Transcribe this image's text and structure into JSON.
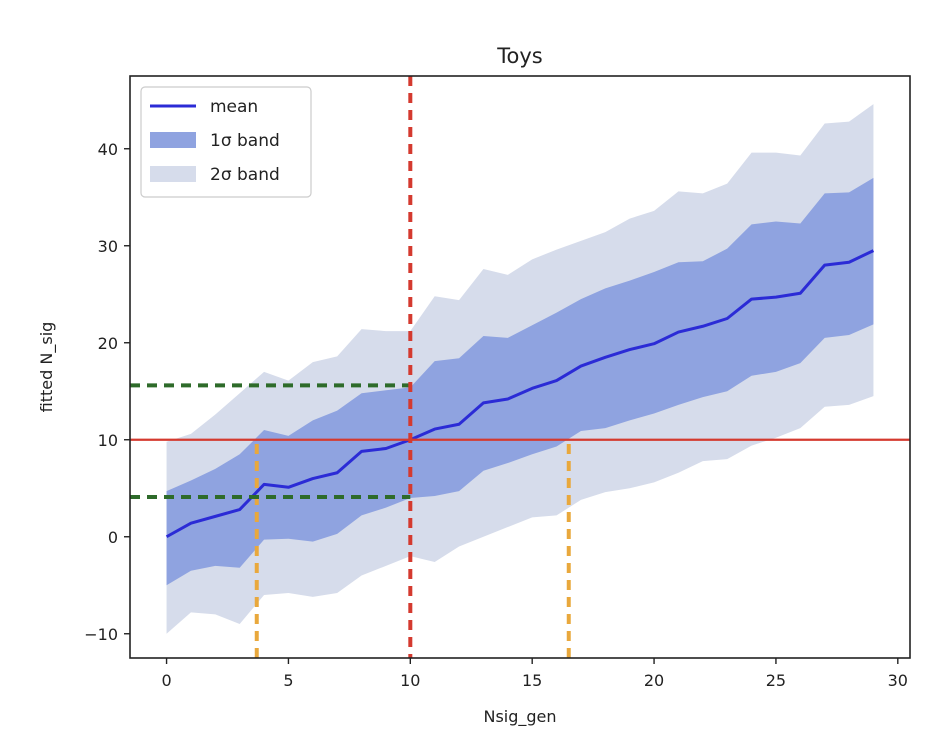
{
  "chart_data": {
    "type": "line",
    "title": "Toys",
    "xlabel": "Nsig_gen",
    "ylabel": "fitted N_sig",
    "xlim": [
      -1.5,
      30.5
    ],
    "ylim": [
      -12.5,
      47.5
    ],
    "xticks": [
      0,
      5,
      10,
      15,
      20,
      25,
      30
    ],
    "yticks": [
      -10,
      0,
      10,
      20,
      30,
      40
    ],
    "xtick_labels": [
      "0",
      "5",
      "10",
      "15",
      "20",
      "25",
      "30"
    ],
    "ytick_labels": [
      "−10",
      "0",
      "10",
      "20",
      "30",
      "40"
    ],
    "legend_position": "upper-left",
    "legend": {
      "mean": "mean",
      "band1": "1σ band",
      "band2": "2σ band"
    },
    "colors": {
      "mean": "#2b2bd6",
      "band1": "#8fa3e0",
      "band2": "#d6dceb",
      "hline": "#d43a2f",
      "vline": "#d43a2f",
      "green": "#2e6b2a",
      "orange": "#e9a83c"
    },
    "x": [
      0,
      1,
      2,
      3,
      4,
      5,
      6,
      7,
      8,
      9,
      10,
      11,
      12,
      13,
      14,
      15,
      16,
      17,
      18,
      19,
      20,
      21,
      22,
      23,
      24,
      25,
      26,
      27,
      28,
      29
    ],
    "series": [
      {
        "name": "mean",
        "values": [
          0.0,
          1.4,
          2.1,
          2.8,
          5.4,
          5.1,
          6.0,
          6.6,
          8.8,
          9.1,
          10.0,
          11.1,
          11.6,
          13.8,
          14.2,
          15.3,
          16.1,
          17.6,
          18.5,
          19.3,
          19.9,
          21.1,
          21.7,
          22.5,
          24.5,
          24.7,
          25.1,
          28.0,
          28.3,
          29.5
        ]
      },
      {
        "name": "1σ band",
        "lower": [
          -5.0,
          -3.5,
          -3.0,
          -3.2,
          -0.3,
          -0.2,
          -0.5,
          0.3,
          2.2,
          3.0,
          4.0,
          4.2,
          4.7,
          6.8,
          7.6,
          8.5,
          9.3,
          10.9,
          11.2,
          12.0,
          12.7,
          13.6,
          14.4,
          15.0,
          16.6,
          17.0,
          17.9,
          20.5,
          20.8,
          21.9
        ],
        "upper": [
          4.7,
          5.8,
          7.0,
          8.5,
          11.0,
          10.4,
          12.0,
          13.0,
          14.8,
          15.1,
          15.4,
          18.1,
          18.4,
          20.7,
          20.5,
          21.8,
          23.1,
          24.5,
          25.6,
          26.4,
          27.3,
          28.3,
          28.4,
          29.7,
          32.2,
          32.5,
          32.3,
          35.4,
          35.5,
          37.0
        ]
      },
      {
        "name": "2σ band",
        "lower": [
          -10.0,
          -7.8,
          -8.0,
          -9.0,
          -6.0,
          -5.8,
          -6.2,
          -5.8,
          -4.0,
          -3.0,
          -2.0,
          -2.6,
          -1.0,
          0.0,
          1.0,
          2.0,
          2.2,
          3.8,
          4.6,
          5.0,
          5.6,
          6.6,
          7.8,
          8.0,
          9.4,
          10.2,
          11.2,
          13.4,
          13.6,
          14.5
        ],
        "upper": [
          9.8,
          10.6,
          12.6,
          14.8,
          17.0,
          16.1,
          18.0,
          18.6,
          21.4,
          21.2,
          21.2,
          24.8,
          24.4,
          27.6,
          27.0,
          28.6,
          29.6,
          30.5,
          31.4,
          32.8,
          33.6,
          35.6,
          35.4,
          36.4,
          39.6,
          39.6,
          39.3,
          42.6,
          42.8,
          44.6
        ]
      }
    ],
    "annotations": {
      "horizontal_line_y": 10,
      "vertical_line_x": 10,
      "green_lines_y": [
        15.6,
        4.1
      ],
      "orange_lines_x": [
        3.7,
        16.5
      ]
    }
  }
}
